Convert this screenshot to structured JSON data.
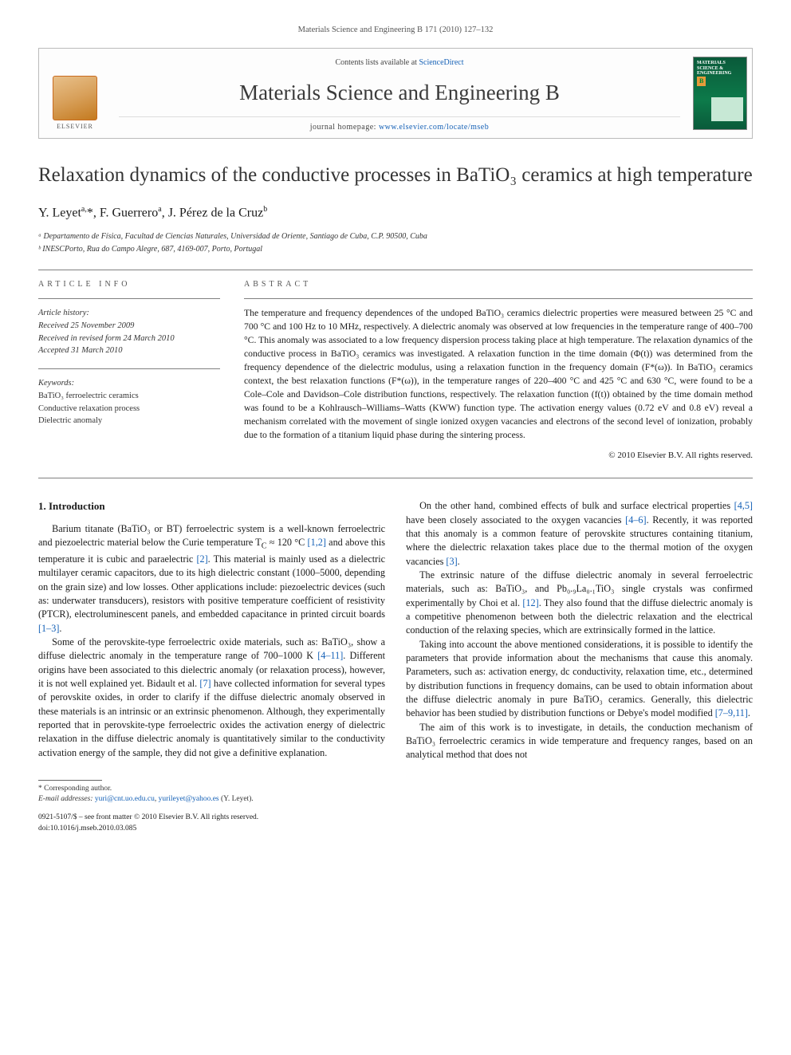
{
  "header_line": "Materials Science and Engineering B 171 (2010) 127–132",
  "banner": {
    "contents_prefix": "Contents lists available at ",
    "contents_link": "ScienceDirect",
    "journal_name": "Materials Science and Engineering B",
    "homepage_prefix": "journal homepage: ",
    "homepage_url": "www.elsevier.com/locate/mseb",
    "elsevier_word": "ELSEVIER",
    "cover_title": "MATERIALS SCIENCE & ENGINEERING",
    "cover_b": "B"
  },
  "title": "Relaxation dynamics of the conductive processes in BaTiO₃ ceramics at high temperature",
  "authors_html": "Y. Leyet<sup>a,</sup>*, F. Guerrero<sup>a</sup>, J. Pérez de la Cruz<sup>b</sup>",
  "affiliations": [
    "ᵃ Departamento de Física, Facultad de Ciencias Naturales, Universidad de Oriente, Santiago de Cuba, C.P. 90500, Cuba",
    "ᵇ INESCPorto, Rua do Campo Alegre, 687, 4169-007, Porto, Portugal"
  ],
  "info": {
    "label": "article info",
    "history_label": "Article history:",
    "received": "Received 25 November 2009",
    "revised": "Received in revised form 24 March 2010",
    "accepted": "Accepted 31 March 2010",
    "keywords_label": "Keywords:",
    "keywords": [
      "BaTiO₃ ferroelectric ceramics",
      "Conductive relaxation process",
      "Dielectric anomaly"
    ]
  },
  "abstract": {
    "label": "abstract",
    "text": "The temperature and frequency dependences of the undoped BaTiO₃ ceramics dielectric properties were measured between 25 °C and 700 °C and 100 Hz to 10 MHz, respectively. A dielectric anomaly was observed at low frequencies in the temperature range of 400–700 °C. This anomaly was associated to a low frequency dispersion process taking place at high temperature. The relaxation dynamics of the conductive process in BaTiO₃ ceramics was investigated. A relaxation function in the time domain (Φ(t)) was determined from the frequency dependence of the dielectric modulus, using a relaxation function in the frequency domain (F*(ω)). In BaTiO₃ ceramics context, the best relaxation functions (F*(ω)), in the temperature ranges of 220–400 °C and 425 °C and 630 °C, were found to be a Cole–Cole and Davidson–Cole distribution functions, respectively. The relaxation function (f(t)) obtained by the time domain method was found to be a Kohlrausch–Williams–Watts (KWW) function type. The activation energy values (0.72 eV and 0.8 eV) reveal a mechanism correlated with the movement of single ionized oxygen vacancies and electrons of the second level of ionization, probably due to the formation of a titanium liquid phase during the sintering process.",
    "copyright": "© 2010 Elsevier B.V. All rights reserved."
  },
  "section1": {
    "heading": "1.  Introduction",
    "p1a": "Barium titanate (BaTiO₃ or BT) ferroelectric system is a well-known ferroelectric and piezoelectric material below the Curie temperature T",
    "p1b": " ≈ 120 °C ",
    "p1c": " and above this temperature it is cubic and paraelectric ",
    "p1d": ". This material is mainly used as a dielectric multilayer ceramic capacitors, due to its high dielectric constant (1000–5000, depending on the grain size) and low losses. Other applications include: piezoelectric devices (such as: underwater transducers), resistors with positive temperature coefficient of resistivity (PTCR), electroluminescent panels, and embedded capacitance in printed circuit boards ",
    "p1e": ".",
    "ref12": "[1,2]",
    "ref2": "[2]",
    "ref13": "[1–3]",
    "p2a": "Some of the perovskite-type ferroelectric oxide materials, such as: BaTiO₃, show a diffuse dielectric anomaly in the temperature range of 700–1000 K ",
    "ref411": "[4–11]",
    "p2b": ". Different origins have been associated to this dielectric anomaly (or relaxation process), however, it is not well explained yet. Bidault et al. ",
    "ref7": "[7]",
    "p2c": " have collected information for several types of perovskite oxides, in order to clarify if the diffuse dielectric anomaly observed in these materials is an intrinsic or an extrinsic phenomenon. Although, they experimentally reported that in perovskite-type ferroelectric oxides the activation energy of dielectric relaxation in the diffuse dielectric anomaly is quantitatively similar to the conductivity activation energy of the sample, they did not give a definitive explanation.",
    "p3a": "On the other hand, combined effects of bulk and surface electrical properties ",
    "ref45": "[4,5]",
    "p3b": " have been closely associated to the oxygen vacancies ",
    "ref46": "[4–6]",
    "p3c": ". Recently, it was reported that this anomaly is a common feature of perovskite structures containing titanium, where the dielectric relaxation takes place due to the thermal motion of the oxygen vacancies ",
    "ref3": "[3]",
    "p3d": ".",
    "p4a": "The extrinsic nature of the diffuse dielectric anomaly in several ferroelectric materials, such as: BaTiO₃, and Pb₀.₉La₀.₁TiO₃ single crystals was confirmed experimentally by Choi et al. ",
    "ref12b": "[12]",
    "p4b": ". They also found that the diffuse dielectric anomaly is a competitive phenomenon between both the dielectric relaxation and the electrical conduction of the relaxing species, which are extrinsically formed in the lattice.",
    "p5a": "Taking into account the above mentioned considerations, it is possible to identify the parameters that provide information about the mechanisms that cause this anomaly. Parameters, such as: activation energy, dc conductivity, relaxation time, etc., determined by distribution functions in frequency domains, can be used to obtain information about the diffuse dielectric anomaly in pure BaTiO₃ ceramics. Generally, this dielectric behavior has been studied by distribution functions or Debye's model modified ",
    "ref7911": "[7–9,11]",
    "p5b": ".",
    "p6": "The aim of this work is to investigate, in details, the conduction mechanism of BaTiO₃ ferroelectric ceramics in wide temperature and frequency ranges, based on an analytical method that does not"
  },
  "footer": {
    "corr": "* Corresponding author.",
    "emails_label": "E-mail addresses:",
    "email1": "yuri@cnt.uo.edu.cu",
    "email2": "yurileyet@yahoo.es",
    "emails_tail": " (Y. Leyet).",
    "issn_line": "0921-5107/$ – see front matter © 2010 Elsevier B.V. All rights reserved.",
    "doi": "doi:10.1016/j.mseb.2010.03.085"
  },
  "colors": {
    "link": "#1460b6",
    "text": "#1a1a1a",
    "rule": "#808080",
    "elsevier_orange": "#c96b1f",
    "cover_green": "#0d7a4a"
  }
}
